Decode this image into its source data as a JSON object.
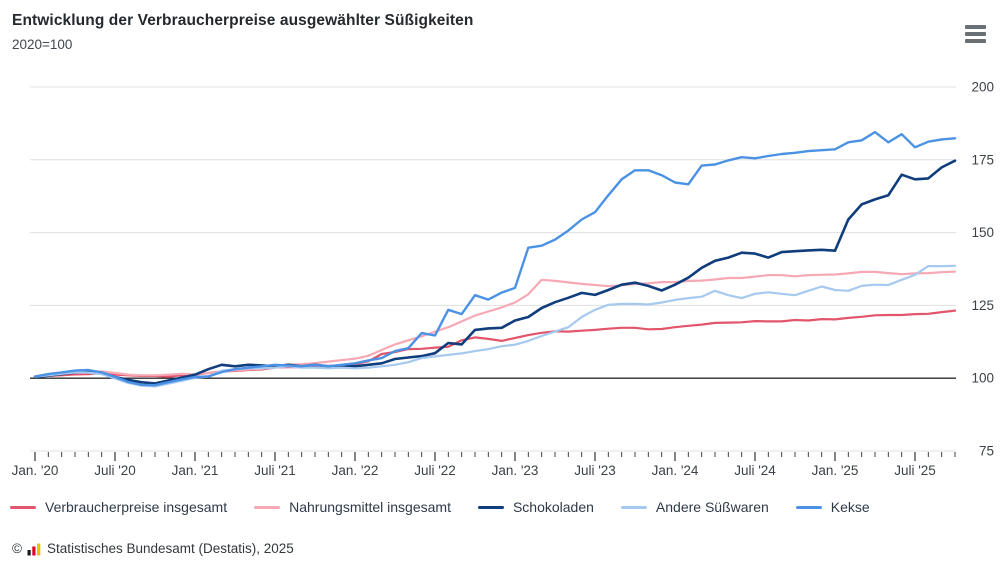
{
  "header": {
    "title": "Entwicklung der Verbraucherpreise ausgewählter Süßigkeiten",
    "subtitle": "2020=100"
  },
  "menu": {
    "icon": "hamburger-menu"
  },
  "footer": {
    "copyright": "©",
    "logo": "destatis-bars-logo",
    "source": "Statistisches Bundesamt (Destatis), 2025"
  },
  "chart_data": {
    "type": "line",
    "title": "Entwicklung der Verbraucherpreise ausgewählter Süßigkeiten",
    "index_base": "2020=100",
    "x_interval": "monthly",
    "x_start": "2020-01",
    "x_end": "2025-10",
    "months_count": 70,
    "x_tick_labels": [
      "Jan. '20",
      "Juli '20",
      "Jan. '21",
      "Juli '21",
      "Jan. '22",
      "Juli '22",
      "Jan. '23",
      "Juli '23",
      "Jan. '24",
      "Juli '24",
      "Jan. '25",
      "Juli '25"
    ],
    "x_tick_month_indices": [
      0,
      6,
      12,
      18,
      24,
      30,
      36,
      42,
      48,
      54,
      60,
      66
    ],
    "ylim": [
      75,
      200
    ],
    "yticks": [
      200,
      175,
      150,
      125,
      100,
      75
    ],
    "baseline_value": 100,
    "grid": "horizontal-only",
    "legend_position": "bottom",
    "style": {
      "grid_color": "#e0e0e0",
      "baseline_color": "#2b2b2b",
      "tick_color": "#3c4248",
      "label_color": "#3c4248"
    },
    "series": [
      {
        "name": "Verbraucherpreise insgesamt",
        "color": "#e2556b",
        "width": 2.2,
        "values": [
          100.5,
          100.8,
          101.0,
          101.3,
          101.4,
          101.8,
          101.2,
          101.0,
          100.8,
          100.8,
          100.5,
          101.0,
          101.2,
          101.8,
          102.3,
          102.5,
          102.8,
          103.0,
          103.7,
          103.8,
          103.8,
          104.3,
          104.2,
          104.3,
          104.8,
          105.8,
          108.3,
          109.0,
          110.0,
          110.1,
          110.5,
          110.8,
          113.0,
          114.0,
          113.5,
          112.8,
          113.8,
          114.8,
          115.6,
          116.1,
          116.0,
          116.3,
          116.6,
          117.0,
          117.3,
          117.3,
          116.8,
          116.9,
          117.5,
          118.0,
          118.4,
          119.0,
          119.1,
          119.2,
          119.6,
          119.5,
          119.5,
          120.0,
          119.8,
          120.3,
          120.2,
          120.7,
          121.1,
          121.6,
          121.7,
          121.7,
          122.0,
          122.1,
          122.7,
          123.2
        ]
      },
      {
        "name": "Nahrungsmittel insgesamt",
        "color": "#f6a9b5",
        "width": 2.2,
        "values": [
          100.7,
          101.2,
          101.5,
          102.2,
          102.3,
          102.3,
          101.8,
          101.2,
          101.0,
          101.0,
          101.2,
          101.5,
          101.3,
          101.8,
          102.2,
          102.7,
          103.0,
          103.2,
          104.2,
          104.7,
          104.8,
          105.2,
          105.7,
          106.2,
          106.7,
          107.7,
          109.7,
          111.6,
          113.0,
          114.4,
          116.0,
          117.5,
          119.5,
          121.5,
          122.9,
          124.3,
          126.0,
          128.8,
          133.8,
          133.4,
          132.9,
          132.4,
          132.0,
          131.6,
          131.9,
          132.4,
          132.6,
          133.0,
          133.0,
          133.4,
          133.5,
          133.9,
          134.4,
          134.4,
          134.9,
          135.4,
          135.4,
          135.0,
          135.4,
          135.5,
          135.6,
          136.0,
          136.5,
          136.5,
          136.1,
          135.7,
          136.0,
          136.1,
          136.4,
          136.6
        ]
      },
      {
        "name": "Schokoladen",
        "color": "#103d7c",
        "width": 2.6,
        "values": [
          100.4,
          100.9,
          101.4,
          102.0,
          102.4,
          101.9,
          100.4,
          99.4,
          98.6,
          98.2,
          99.2,
          100.2,
          101.2,
          103.1,
          104.6,
          104.1,
          104.6,
          104.4,
          104.1,
          104.6,
          104.1,
          104.6,
          104.1,
          104.4,
          104.1,
          104.6,
          105.1,
          106.6,
          107.1,
          107.6,
          108.6,
          112.1,
          111.6,
          116.6,
          117.1,
          117.3,
          119.8,
          121.0,
          124.1,
          126.1,
          127.6,
          129.3,
          128.6,
          130.3,
          132.1,
          132.8,
          131.7,
          130.1,
          132.1,
          134.5,
          137.9,
          140.3,
          141.4,
          143.1,
          142.8,
          141.4,
          143.3,
          143.6,
          143.9,
          144.1,
          143.8,
          154.5,
          159.7,
          161.4,
          162.8,
          169.9,
          168.3,
          168.6,
          172.4,
          174.7
        ]
      },
      {
        "name": "Andere Süßwaren",
        "color": "#a6c9f0",
        "width": 2.2,
        "values": [
          100.5,
          101.0,
          101.5,
          102.0,
          101.9,
          101.4,
          99.9,
          98.4,
          97.5,
          97.2,
          98.1,
          99.1,
          100.1,
          100.6,
          102.6,
          103.1,
          103.4,
          103.4,
          103.6,
          104.1,
          103.6,
          103.6,
          103.4,
          103.6,
          103.4,
          103.6,
          104.1,
          104.6,
          105.5,
          106.9,
          107.5,
          108.0,
          108.5,
          109.3,
          110.0,
          111.0,
          111.5,
          112.8,
          114.5,
          116.0,
          117.5,
          121.0,
          123.5,
          125.2,
          125.5,
          125.5,
          125.3,
          126.0,
          126.9,
          127.5,
          128.0,
          130.0,
          128.5,
          127.5,
          129.0,
          129.5,
          129.0,
          128.5,
          130.0,
          131.5,
          130.3,
          130.0,
          131.7,
          132.1,
          132.0,
          133.8,
          135.5,
          138.5,
          138.5,
          138.6
        ]
      },
      {
        "name": "Kekse",
        "color": "#4b92e5",
        "width": 2.4,
        "values": [
          100.6,
          101.4,
          102.0,
          102.6,
          102.8,
          102.0,
          100.4,
          98.7,
          97.7,
          97.6,
          98.6,
          99.6,
          100.4,
          100.6,
          102.1,
          103.1,
          103.6,
          104.1,
          104.6,
          104.4,
          104.1,
          104.6,
          104.1,
          104.6,
          105.1,
          106.1,
          106.9,
          109.3,
          110.3,
          115.5,
          114.7,
          123.5,
          122.0,
          128.5,
          127.0,
          129.4,
          131.0,
          144.8,
          145.5,
          147.6,
          150.7,
          154.5,
          157.0,
          162.8,
          168.3,
          171.4,
          171.4,
          169.7,
          167.2,
          166.6,
          173.0,
          173.4,
          174.8,
          175.9,
          175.5,
          176.3,
          177.0,
          177.4,
          178.0,
          178.3,
          178.6,
          181.0,
          181.7,
          184.5,
          181.0,
          183.8,
          179.3,
          181.2,
          182.0,
          182.4
        ]
      }
    ]
  }
}
